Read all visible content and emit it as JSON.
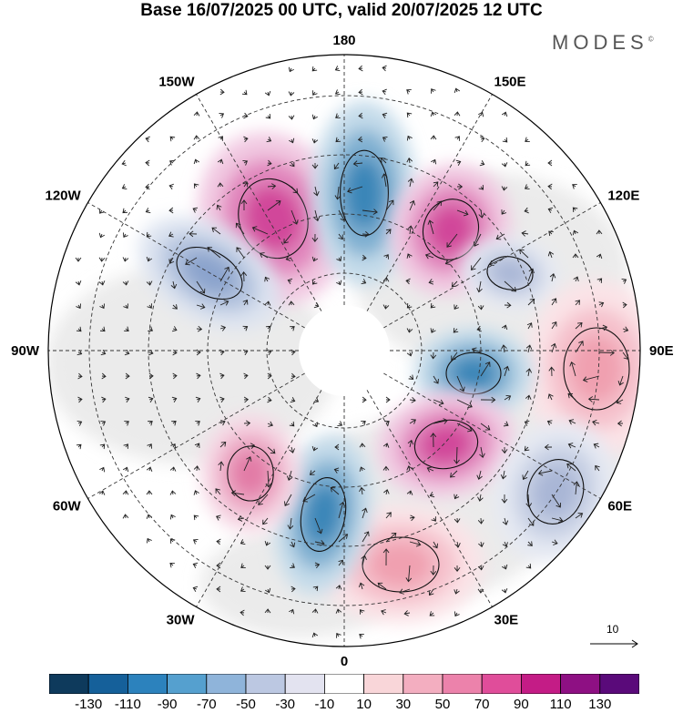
{
  "title": "Base 16/07/2025 00 UTC, valid 20/07/2025 12 UTC",
  "brand": "MODES",
  "brand_mark": "©",
  "projection": "north-polar-stereographic",
  "longitude_labels": [
    {
      "text": "180",
      "lon": 180
    },
    {
      "text": "150E",
      "lon": 150
    },
    {
      "text": "120E",
      "lon": 120
    },
    {
      "text": "90E",
      "lon": 90
    },
    {
      "text": "60E",
      "lon": 60
    },
    {
      "text": "30E",
      "lon": 30
    },
    {
      "text": "0",
      "lon": 0
    },
    {
      "text": "30W",
      "lon": -30
    },
    {
      "text": "60W",
      "lon": -60
    },
    {
      "text": "90W",
      "lon": -90
    },
    {
      "text": "120W",
      "lon": -120
    },
    {
      "text": "150W",
      "lon": -150
    }
  ],
  "anomaly_centers": [
    {
      "name": "positive-anomaly-150w-sector",
      "sign": "positive",
      "strength": 90,
      "color": "#d1479a"
    },
    {
      "name": "negative-anomaly-180-sector",
      "sign": "negative",
      "strength": -90,
      "color": "#3b86b8"
    },
    {
      "name": "positive-anomaly-150e-sector",
      "sign": "positive",
      "strength": 90,
      "color": "#d1479a"
    },
    {
      "name": "negative-anomaly-120e-sector",
      "sign": "negative",
      "strength": -50,
      "color": "#a9b6d6"
    },
    {
      "name": "positive-anomaly-90e-sector",
      "sign": "positive",
      "strength": 50,
      "color": "#f0a0b0"
    },
    {
      "name": "negative-anomaly-east-siberia",
      "sign": "negative",
      "strength": -90,
      "color": "#3b86b8"
    },
    {
      "name": "positive-anomaly-60e-sector",
      "sign": "positive",
      "strength": 90,
      "color": "#d1479a"
    },
    {
      "name": "negative-anomaly-60e-sector",
      "sign": "negative",
      "strength": -50,
      "color": "#a9b6d6"
    },
    {
      "name": "positive-anomaly-30e-sector",
      "sign": "positive",
      "strength": 50,
      "color": "#f0a0b0"
    },
    {
      "name": "negative-anomaly-greenland-sea",
      "sign": "negative",
      "strength": -90,
      "color": "#3b86b8"
    },
    {
      "name": "positive-anomaly-north-atlantic",
      "sign": "positive",
      "strength": 70,
      "color": "#e27aa6"
    },
    {
      "name": "negative-anomaly-canada",
      "sign": "negative",
      "strength": -70,
      "color": "#8aa3cc"
    }
  ],
  "vector_legend": {
    "value": "10"
  },
  "colorbar": {
    "colors": [
      "#0e3a5c",
      "#15609a",
      "#2c82bd",
      "#55a0cf",
      "#8fb4da",
      "#bcc8e2",
      "#e3e3f0",
      "#ffffff",
      "#f9d6d9",
      "#f3aec0",
      "#ec82ab",
      "#e04d9a",
      "#c41c86",
      "#8e1083",
      "#5a0a7a"
    ],
    "tick_labels": [
      "-130",
      "-110",
      "-90",
      "-70",
      "-50",
      "-30",
      "-10",
      "10",
      "30",
      "50",
      "70",
      "90",
      "110",
      "130"
    ]
  }
}
